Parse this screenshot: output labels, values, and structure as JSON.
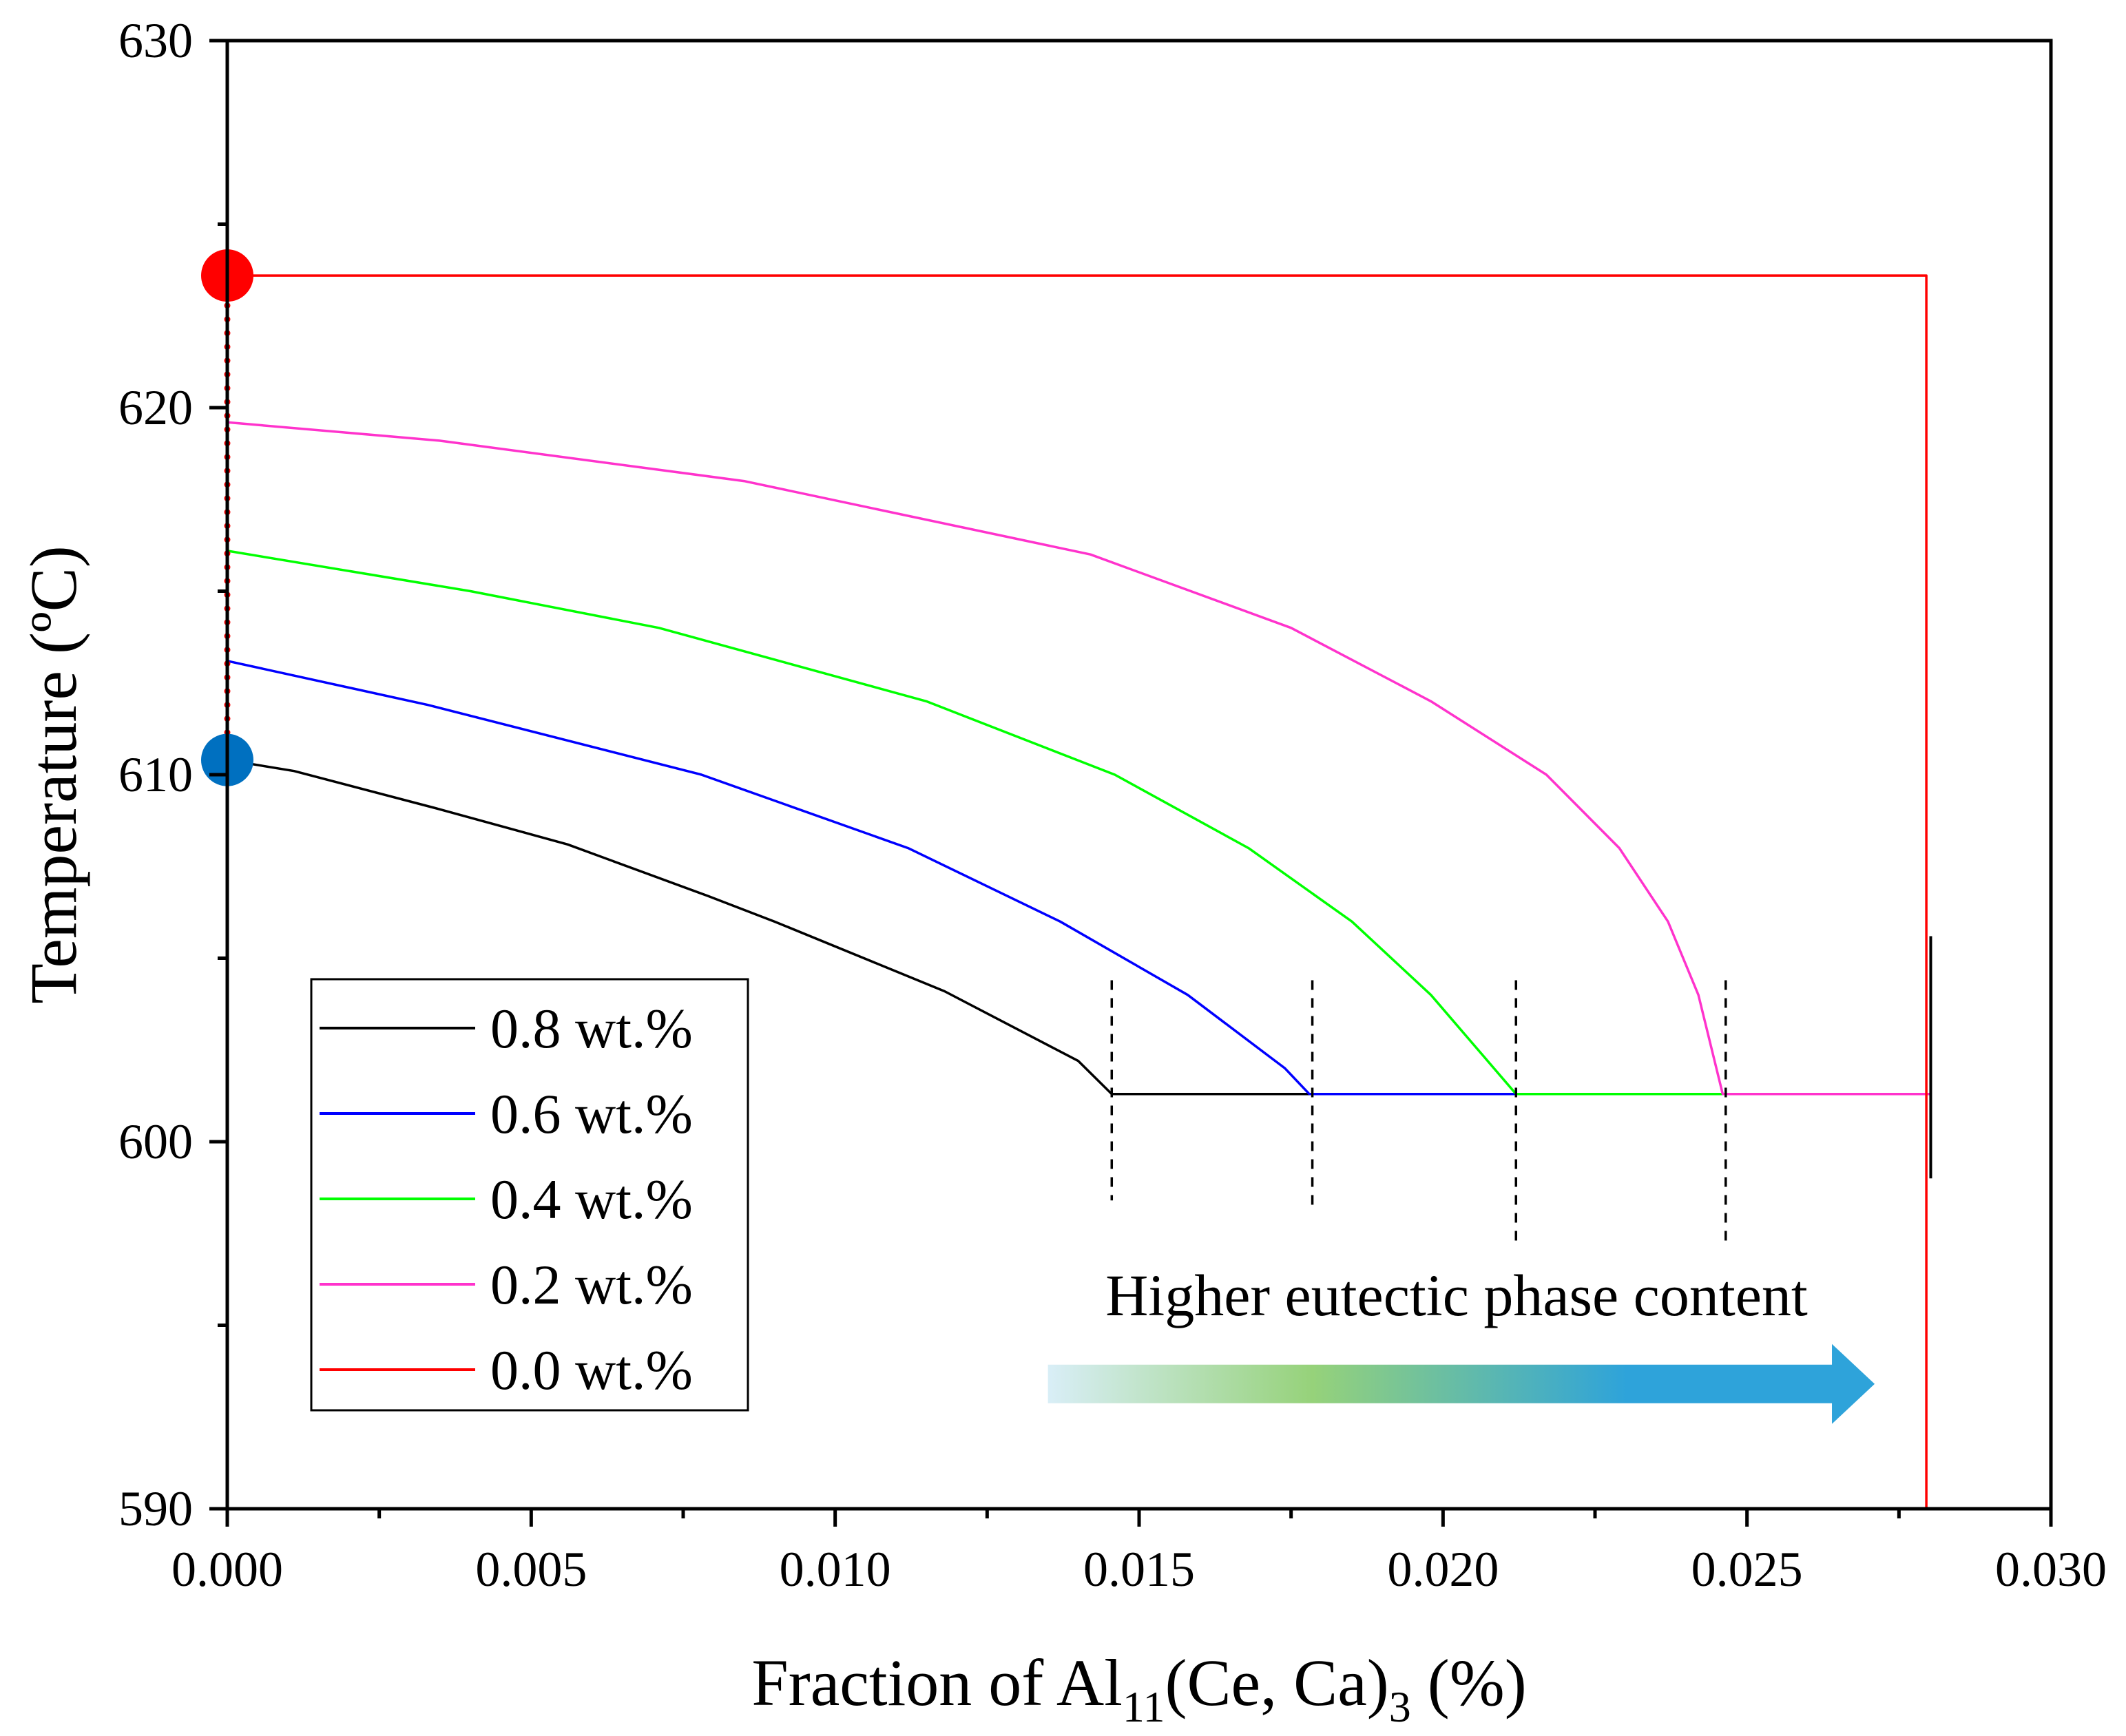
{
  "chart_data": {
    "type": "line",
    "xlabel_prefix": "Fraction of Al",
    "xlabel_sub1": "11",
    "xlabel_mid": "(Ce, Ca)",
    "xlabel_sub2": "3",
    "xlabel_suffix": " (%)",
    "ylabel": "Temperature (ºC)",
    "xlim": [
      0.0,
      0.03
    ],
    "ylim": [
      590,
      630
    ],
    "x_ticks": [
      0.0,
      0.005,
      0.01,
      0.015,
      0.02,
      0.025,
      0.03
    ],
    "x_tick_labels": [
      "0.000",
      "0.005",
      "0.010",
      "0.015",
      "0.020",
      "0.025",
      "0.030"
    ],
    "y_ticks": [
      590,
      600,
      610,
      620,
      630
    ],
    "y_tick_labels": [
      "590",
      "600",
      "610",
      "620",
      "630"
    ],
    "y_minor_ticks": [
      595,
      605,
      615,
      625
    ],
    "series": [
      {
        "name": "0.8 wt.%",
        "color": "#000000",
        "points": [
          [
            0.0,
            610.4
          ],
          [
            0.0011,
            610.1
          ],
          [
            0.0034,
            609.1
          ],
          [
            0.0056,
            608.1
          ],
          [
            0.0079,
            606.7
          ],
          [
            0.009,
            606.0
          ],
          [
            0.0118,
            604.1
          ],
          [
            0.014,
            602.2
          ],
          [
            0.01455,
            601.3
          ],
          [
            0.018,
            601.3
          ],
          [
            0.0212,
            601.3
          ],
          [
            0.0246,
            601.3
          ],
          [
            0.028,
            601.3
          ]
        ]
      },
      {
        "name": "0.6 wt.%",
        "color": "#0000ff",
        "points": [
          [
            0.0,
            613.1
          ],
          [
            0.0033,
            611.9
          ],
          [
            0.0078,
            610.0
          ],
          [
            0.0112,
            608.0
          ],
          [
            0.0137,
            606.0
          ],
          [
            0.0158,
            604.0
          ],
          [
            0.0174,
            602.0
          ],
          [
            0.0178,
            601.3
          ],
          [
            0.0212,
            601.3
          ]
        ]
      },
      {
        "name": "0.4 wt.%",
        "color": "#00ff00",
        "points": [
          [
            0.0,
            616.1
          ],
          [
            0.004,
            615.0
          ],
          [
            0.0071,
            614.0
          ],
          [
            0.0115,
            612.0
          ],
          [
            0.0146,
            610.0
          ],
          [
            0.0168,
            608.0
          ],
          [
            0.0185,
            606.0
          ],
          [
            0.0198,
            604.0
          ],
          [
            0.0212,
            601.3
          ],
          [
            0.0246,
            601.3
          ]
        ]
      },
      {
        "name": "0.2 wt.%",
        "color": "#ff33cc",
        "points": [
          [
            0.0,
            619.6
          ],
          [
            0.0035,
            619.1
          ],
          [
            0.0085,
            618.0
          ],
          [
            0.0142,
            616.0
          ],
          [
            0.0175,
            614.0
          ],
          [
            0.0198,
            612.0
          ],
          [
            0.0217,
            610.0
          ],
          [
            0.0229,
            608.0
          ],
          [
            0.0237,
            606.0
          ],
          [
            0.0242,
            604.0
          ],
          [
            0.0246,
            601.3
          ],
          [
            0.028,
            601.3
          ]
        ]
      },
      {
        "name": "0.0 wt.%",
        "color": "#ff0000",
        "points": [
          [
            0.0,
            623.6
          ],
          [
            0.02795,
            623.6
          ],
          [
            0.02795,
            589.5
          ]
        ]
      }
    ],
    "dashed_markers": [
      {
        "x": 0.01455,
        "y_top": 604.4,
        "y_bottom": 598.4
      },
      {
        "x": 0.01785,
        "y_top": 604.4,
        "y_bottom": 598.1
      },
      {
        "x": 0.0212,
        "y_top": 604.4,
        "y_bottom": 597.2
      },
      {
        "x": 0.02465,
        "y_top": 604.4,
        "y_bottom": 597.2
      }
    ],
    "end_marker_black": {
      "x": 0.028,
      "y_top": 605.6,
      "y_bottom": 599.0
    },
    "points_highlight": [
      {
        "name": "liquidus-0.0",
        "x": 0.0,
        "y": 623.6,
        "color": "#ff0000"
      },
      {
        "name": "liquidus-0.8",
        "x": 0.0,
        "y": 610.4,
        "color": "#0070c0"
      }
    ],
    "dotted_connector": {
      "x": 0.0,
      "y_from": 610.4,
      "y_to": 623.6,
      "color": "#ff0000"
    },
    "legend": {
      "placement": "bottom-left",
      "entries": [
        "0.8 wt.%",
        "0.6 wt.%",
        "0.4 wt.%",
        "0.2 wt.%",
        "0.0 wt.%"
      ]
    },
    "annotation": {
      "text": "Higher eutectic phase content",
      "arrow_from_x": 0.0135,
      "arrow_to_x": 0.0271,
      "arrow_y": 593.4,
      "gradient": [
        "#d9eef7",
        "#96d27a",
        "#2ea3da"
      ]
    }
  }
}
